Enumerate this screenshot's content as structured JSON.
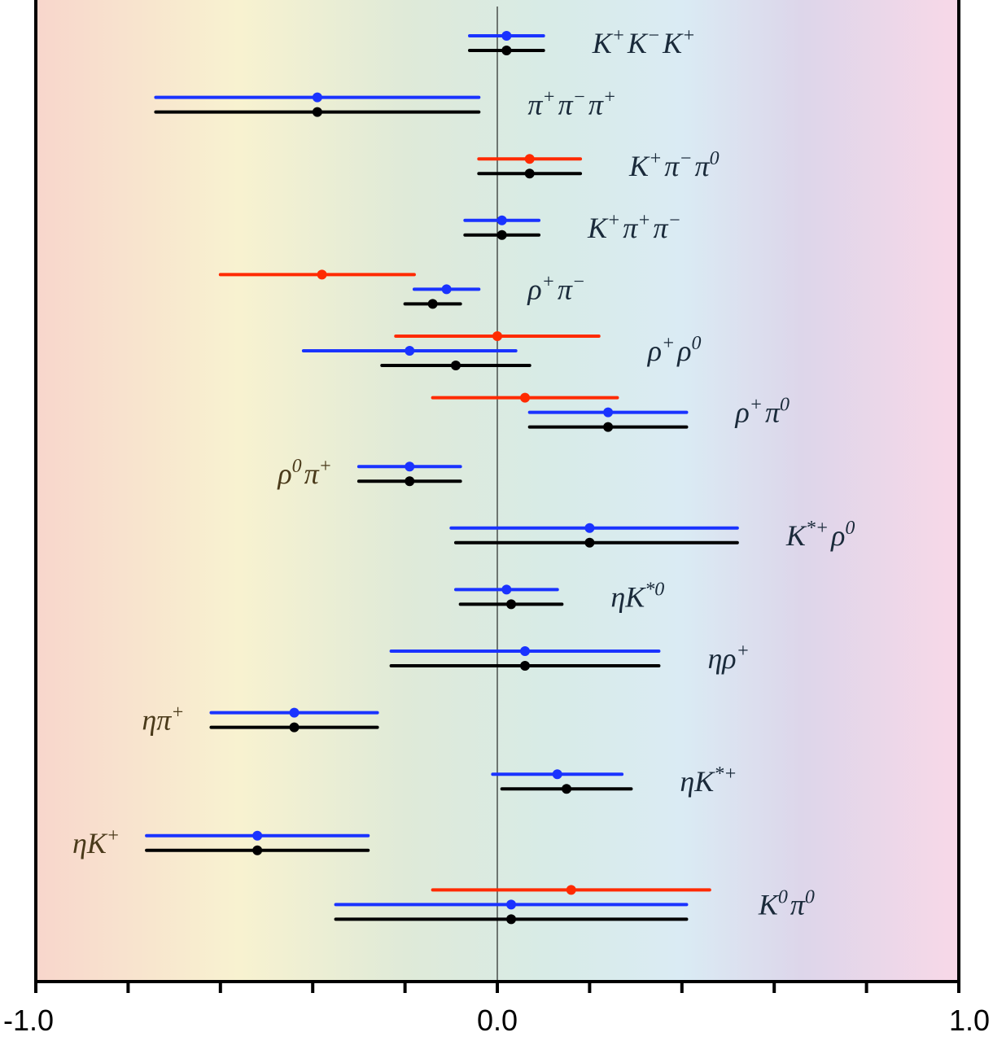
{
  "chart_data": {
    "type": "errorbar",
    "title": "",
    "xlabel": "",
    "ylabel": "",
    "xlim": [
      -1.0,
      1.0
    ],
    "x_tick_labels": [
      "-1.0",
      "0.0",
      "1.0"
    ],
    "x_minor_ticks": [
      -1.0,
      -0.8,
      -0.6,
      -0.4,
      -0.2,
      0.0,
      0.2,
      0.4,
      0.6,
      0.8,
      1.0
    ],
    "zero_line": true,
    "grid": false,
    "background": "horizontal rainbow gradient (red at -1, yellow, green, cyan, violet, pink at +1)",
    "series_colors": {
      "blue": "#1a33ff",
      "black": "#000000",
      "red": "#ff2a00"
    },
    "rows": [
      {
        "mode_parts": [
          [
            "K",
            "+"
          ],
          [
            "K",
            "−"
          ],
          [
            "K",
            "+"
          ]
        ],
        "label_side": "right",
        "measurements": [
          {
            "color": "blue",
            "value": 0.02,
            "low": -0.06,
            "high": 0.1
          },
          {
            "color": "black",
            "value": 0.02,
            "low": -0.06,
            "high": 0.1
          }
        ]
      },
      {
        "mode_parts": [
          [
            "π",
            "+"
          ],
          [
            "π",
            "−"
          ],
          [
            "π",
            "+"
          ]
        ],
        "label_side": "right",
        "measurements": [
          {
            "color": "blue",
            "value": -0.39,
            "low": -0.74,
            "high": -0.04
          },
          {
            "color": "black",
            "value": -0.39,
            "low": -0.74,
            "high": -0.04
          }
        ]
      },
      {
        "mode_parts": [
          [
            "K",
            "+"
          ],
          [
            "π",
            "−"
          ],
          [
            "π",
            "0"
          ]
        ],
        "label_side": "right",
        "measurements": [
          {
            "color": "red",
            "value": 0.07,
            "low": -0.04,
            "high": 0.18
          },
          {
            "color": "black",
            "value": 0.07,
            "low": -0.04,
            "high": 0.18
          }
        ]
      },
      {
        "mode_parts": [
          [
            "K",
            "+"
          ],
          [
            "π",
            "+"
          ],
          [
            "π",
            "−"
          ]
        ],
        "label_side": "right",
        "measurements": [
          {
            "color": "blue",
            "value": 0.01,
            "low": -0.07,
            "high": 0.09
          },
          {
            "color": "black",
            "value": 0.01,
            "low": -0.07,
            "high": 0.09
          }
        ]
      },
      {
        "mode_parts": [
          [
            "ρ",
            "+"
          ],
          [
            "π",
            "−"
          ]
        ],
        "label_side": "right",
        "measurements": [
          {
            "color": "red",
            "value": -0.38,
            "low": -0.6,
            "high": -0.18
          },
          {
            "color": "blue",
            "value": -0.11,
            "low": -0.18,
            "high": -0.04
          },
          {
            "color": "black",
            "value": -0.14,
            "low": -0.2,
            "high": -0.08
          }
        ]
      },
      {
        "mode_parts": [
          [
            "ρ",
            "+"
          ],
          [
            "ρ",
            "0"
          ]
        ],
        "label_side": "right",
        "measurements": [
          {
            "color": "red",
            "value": 0.0,
            "low": -0.22,
            "high": 0.22
          },
          {
            "color": "blue",
            "value": -0.19,
            "low": -0.42,
            "high": 0.04
          },
          {
            "color": "black",
            "value": -0.09,
            "low": -0.25,
            "high": 0.07
          }
        ]
      },
      {
        "mode_parts": [
          [
            "ρ",
            "+"
          ],
          [
            "π",
            "0"
          ]
        ],
        "label_side": "right",
        "measurements": [
          {
            "color": "red",
            "value": 0.06,
            "low": -0.14,
            "high": 0.26
          },
          {
            "color": "blue",
            "value": 0.24,
            "low": 0.07,
            "high": 0.41
          },
          {
            "color": "black",
            "value": 0.24,
            "low": 0.07,
            "high": 0.41
          }
        ]
      },
      {
        "mode_parts": [
          [
            "ρ",
            "0"
          ],
          [
            "π",
            "+"
          ]
        ],
        "label_side": "left",
        "measurements": [
          {
            "color": "blue",
            "value": -0.19,
            "low": -0.3,
            "high": -0.08
          },
          {
            "color": "black",
            "value": -0.19,
            "low": -0.3,
            "high": -0.08
          }
        ]
      },
      {
        "mode_parts": [
          [
            "K",
            "*+"
          ],
          [
            "ρ",
            "0"
          ]
        ],
        "label_side": "right",
        "measurements": [
          {
            "color": "blue",
            "value": 0.2,
            "low": -0.1,
            "high": 0.52
          },
          {
            "color": "black",
            "value": 0.2,
            "low": -0.09,
            "high": 0.52
          }
        ]
      },
      {
        "mode_parts": [
          [
            "η",
            ""
          ],
          [
            "K",
            "*0"
          ]
        ],
        "label_side": "right",
        "measurements": [
          {
            "color": "blue",
            "value": 0.02,
            "low": -0.09,
            "high": 0.13
          },
          {
            "color": "black",
            "value": 0.03,
            "low": -0.08,
            "high": 0.14
          }
        ]
      },
      {
        "mode_parts": [
          [
            "η",
            ""
          ],
          [
            "ρ",
            "+"
          ]
        ],
        "label_side": "right",
        "measurements": [
          {
            "color": "blue",
            "value": 0.06,
            "low": -0.23,
            "high": 0.35
          },
          {
            "color": "black",
            "value": 0.06,
            "low": -0.23,
            "high": 0.35
          }
        ]
      },
      {
        "mode_parts": [
          [
            "η",
            ""
          ],
          [
            "π",
            "+"
          ]
        ],
        "label_side": "left",
        "measurements": [
          {
            "color": "blue",
            "value": -0.44,
            "low": -0.62,
            "high": -0.26
          },
          {
            "color": "black",
            "value": -0.44,
            "low": -0.62,
            "high": -0.26
          }
        ]
      },
      {
        "mode_parts": [
          [
            "η",
            ""
          ],
          [
            "K",
            "*+"
          ]
        ],
        "label_side": "right",
        "measurements": [
          {
            "color": "blue",
            "value": 0.13,
            "low": -0.01,
            "high": 0.27
          },
          {
            "color": "black",
            "value": 0.15,
            "low": 0.01,
            "high": 0.29
          }
        ]
      },
      {
        "mode_parts": [
          [
            "η",
            ""
          ],
          [
            "K",
            "+"
          ]
        ],
        "label_side": "left",
        "measurements": [
          {
            "color": "blue",
            "value": -0.52,
            "low": -0.76,
            "high": -0.28
          },
          {
            "color": "black",
            "value": -0.52,
            "low": -0.76,
            "high": -0.28
          }
        ]
      },
      {
        "mode_parts": [
          [
            "K",
            "0"
          ],
          [
            "π",
            "0"
          ]
        ],
        "label_side": "right",
        "measurements": [
          {
            "color": "red",
            "value": 0.16,
            "low": -0.14,
            "high": 0.46
          },
          {
            "color": "blue",
            "value": 0.03,
            "low": -0.35,
            "high": 0.41
          },
          {
            "color": "black",
            "value": 0.03,
            "low": -0.35,
            "high": 0.41
          }
        ]
      }
    ]
  }
}
